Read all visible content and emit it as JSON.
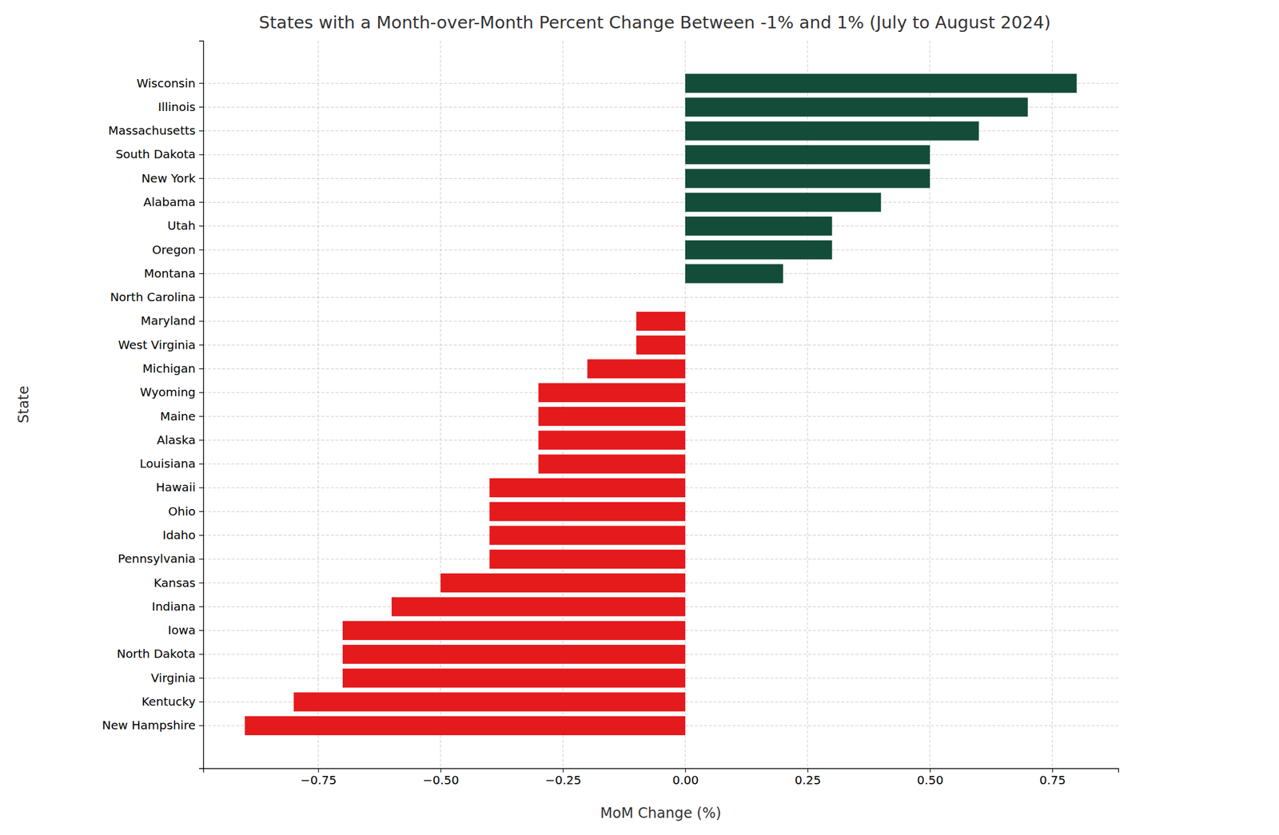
{
  "chart_data": {
    "type": "bar",
    "orientation": "horizontal",
    "title": "States with a Month-over-Month Percent Change Between -1% and 1% (July to August 2024)",
    "x_label": "MoM Change (%)",
    "y_label": "State",
    "categories": [
      "Wisconsin",
      "Illinois",
      "Massachusetts",
      "South Dakota",
      "New York",
      "Alabama",
      "Utah",
      "Oregon",
      "Montana",
      "North Carolina",
      "Maryland",
      "West Virginia",
      "Michigan",
      "Wyoming",
      "Maine",
      "Alaska",
      "Louisiana",
      "Hawaii",
      "Ohio",
      "Idaho",
      "Pennsylvania",
      "Kansas",
      "Indiana",
      "Iowa",
      "North Dakota",
      "Virginia",
      "Kentucky",
      "New Hampshire"
    ],
    "values": [
      0.8,
      0.7,
      0.6,
      0.5,
      0.5,
      0.4,
      0.3,
      0.3,
      0.2,
      0.0,
      -0.1,
      -0.1,
      -0.2,
      -0.3,
      -0.3,
      -0.3,
      -0.3,
      -0.4,
      -0.4,
      -0.4,
      -0.4,
      -0.5,
      -0.6,
      -0.7,
      -0.7,
      -0.7,
      -0.8,
      -0.9
    ],
    "colors": [
      "#134d3a",
      "#134d3a",
      "#134d3a",
      "#134d3a",
      "#134d3a",
      "#134d3a",
      "#134d3a",
      "#134d3a",
      "#134d3a",
      "#134d3a",
      "#e41a1c",
      "#e41a1c",
      "#e41a1c",
      "#e41a1c",
      "#e41a1c",
      "#e41a1c",
      "#e41a1c",
      "#e41a1c",
      "#e41a1c",
      "#e41a1c",
      "#e41a1c",
      "#e41a1c",
      "#e41a1c",
      "#e41a1c",
      "#e41a1c",
      "#e41a1c",
      "#e41a1c",
      "#e41a1c"
    ],
    "xlim": [
      -0.985,
      0.885
    ],
    "xticks": [
      {
        "value": -0.75,
        "label": "−0.75"
      },
      {
        "value": -0.5,
        "label": "−0.50"
      },
      {
        "value": -0.25,
        "label": "−0.25"
      },
      {
        "value": 0,
        "label": "0.00"
      },
      {
        "value": 0.25,
        "label": "0.25"
      },
      {
        "value": 0.5,
        "label": "0.50"
      },
      {
        "value": 0.75,
        "label": "0.75"
      }
    ],
    "grid": true
  }
}
